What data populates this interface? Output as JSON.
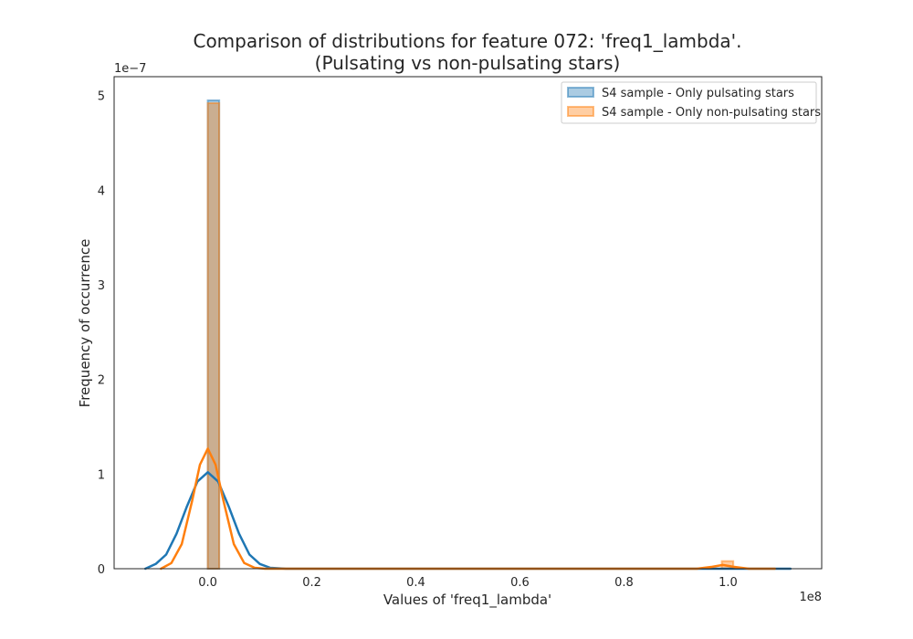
{
  "chart_data": {
    "type": "histogram",
    "title_line1": "Comparison of distributions for feature 072: 'freq1_lambda'.",
    "title_line2": "(Pulsating vs non-pulsating stars)",
    "xlabel": "Values of 'freq1_lambda'",
    "ylabel": "Frequency of occurrence",
    "x_multiplier": "1e8",
    "y_multiplier": "1e−7",
    "xlim": [
      -0.18,
      1.18
    ],
    "ylim": [
      0,
      5.2
    ],
    "x_ticks": [
      0.0,
      0.2,
      0.4,
      0.6,
      0.8,
      1.0
    ],
    "x_tick_labels": [
      "0.0",
      "0.2",
      "0.4",
      "0.6",
      "0.8",
      "1.0"
    ],
    "y_ticks": [
      0,
      1,
      2,
      3,
      4,
      5
    ],
    "y_tick_labels": [
      "0",
      "1",
      "2",
      "3",
      "4",
      "5"
    ],
    "grid": false,
    "legend_position": "top-right",
    "series": [
      {
        "name": "S4 sample - Only pulsating stars",
        "color": "#1f77b4",
        "bars": [
          {
            "x0": 0.0,
            "x1": 0.022,
            "height": 4.95
          }
        ],
        "kde": [
          [
            -0.12,
            0.0
          ],
          [
            -0.1,
            0.05
          ],
          [
            -0.08,
            0.15
          ],
          [
            -0.06,
            0.37
          ],
          [
            -0.04,
            0.66
          ],
          [
            -0.02,
            0.92
          ],
          [
            0.0,
            1.02
          ],
          [
            0.02,
            0.92
          ],
          [
            0.04,
            0.66
          ],
          [
            0.06,
            0.37
          ],
          [
            0.08,
            0.15
          ],
          [
            0.1,
            0.05
          ],
          [
            0.12,
            0.01
          ],
          [
            0.15,
            0.0
          ],
          [
            1.1,
            0.0
          ],
          [
            1.12,
            0.0
          ]
        ]
      },
      {
        "name": "S4 sample - Only non-pulsating stars",
        "color": "#ff7f0e",
        "bars": [
          {
            "x0": 0.0,
            "x1": 0.022,
            "height": 4.92
          },
          {
            "x0": 0.988,
            "x1": 1.01,
            "height": 0.08
          }
        ],
        "kde": [
          [
            -0.09,
            0.0
          ],
          [
            -0.07,
            0.06
          ],
          [
            -0.05,
            0.26
          ],
          [
            -0.03,
            0.72
          ],
          [
            -0.015,
            1.1
          ],
          [
            0.0,
            1.27
          ],
          [
            0.015,
            1.1
          ],
          [
            0.03,
            0.72
          ],
          [
            0.05,
            0.26
          ],
          [
            0.07,
            0.06
          ],
          [
            0.09,
            0.01
          ],
          [
            0.11,
            0.0
          ],
          [
            0.94,
            0.0
          ],
          [
            0.97,
            0.02
          ],
          [
            0.99,
            0.04
          ],
          [
            1.01,
            0.02
          ],
          [
            1.04,
            0.0
          ],
          [
            1.09,
            0.0
          ]
        ]
      }
    ]
  }
}
